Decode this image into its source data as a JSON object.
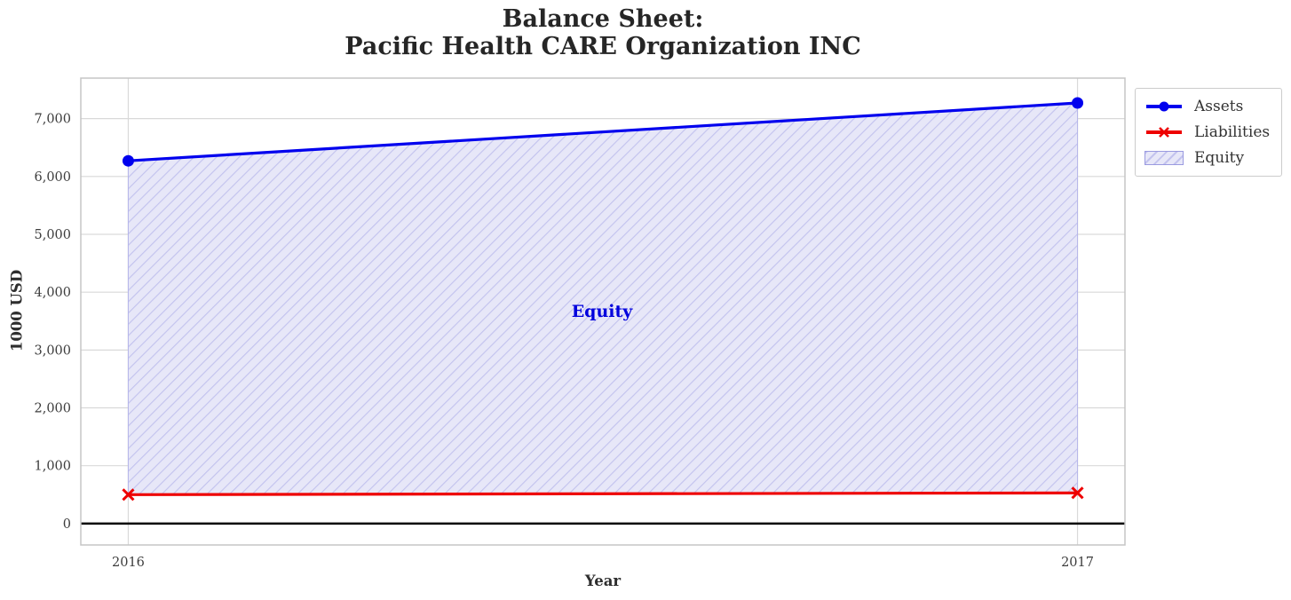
{
  "title": {
    "line1": "Balance Sheet:",
    "line2": "Pacific Health CARE Organization INC"
  },
  "axes": {
    "x_label": "Year",
    "y_label": "1000 USD"
  },
  "annotation": {
    "equity_label": "Equity",
    "color": "#0000dd"
  },
  "legend": {
    "items": [
      {
        "label": "Assets",
        "swatch": "blue-line-circle-marker",
        "color": "#0000ee"
      },
      {
        "label": "Liabilities",
        "swatch": "red-line-x-marker",
        "color": "#ee0000"
      },
      {
        "label": "Equity",
        "swatch": "lavender-hatched-patch",
        "color": "#e7e7f8"
      }
    ]
  },
  "chart_data": {
    "type": "line",
    "title": "Balance Sheet:\nPacific Health CARE Organization INC",
    "xlabel": "Year",
    "ylabel": "1000 USD",
    "x": [
      2016,
      2017
    ],
    "series": [
      {
        "name": "Assets",
        "values": [
          6270,
          7270
        ],
        "color": "#0000ee",
        "marker": "circle",
        "linewidth": 3.2
      },
      {
        "name": "Liabilities",
        "values": [
          500,
          530
        ],
        "color": "#ee0000",
        "marker": "x",
        "linewidth": 3.2
      }
    ],
    "area": {
      "name": "Equity",
      "between": [
        "Liabilities",
        "Assets"
      ],
      "values": [
        5770,
        6740
      ],
      "fill": "#e7e7f8",
      "hatch": "/",
      "hatch_color": "#c3c3ee",
      "edge_color": "#b6b6ea"
    },
    "xlim": [
      2015.95,
      2017.05
    ],
    "ylim": [
      -370,
      7700
    ],
    "xticks": {
      "values": [
        2016,
        2017
      ],
      "labels": [
        "2016",
        "2017"
      ]
    },
    "yticks": {
      "values": [
        0,
        1000,
        2000,
        3000,
        4000,
        5000,
        6000,
        7000
      ],
      "labels": [
        "0",
        "1,000",
        "2,000",
        "3,000",
        "4,000",
        "5,000",
        "6,000",
        "7,000"
      ]
    },
    "grid": true,
    "grid_color": "#d9d9d9",
    "plot_border_color": "#c5c5c5",
    "zero_line": true,
    "zero_line_color": "#000000",
    "tick_color": "#3d3d3d",
    "legend_position": "outside-top-right"
  }
}
